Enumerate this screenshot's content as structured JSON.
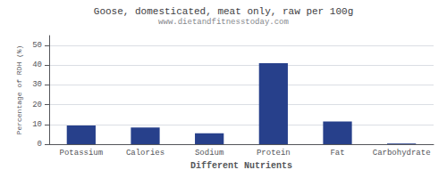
{
  "chart_data": {
    "type": "bar",
    "title": "Goose, domesticated, meat only, raw per 100g",
    "subtitle": "www.dietandfitnesstoday.com",
    "xlabel": "Different Nutrients",
    "ylabel": "Percentage of RDH (%)",
    "categories": [
      "Potassium",
      "Calories",
      "Sodium",
      "Protein",
      "Fat",
      "Carbohydrate"
    ],
    "values": [
      9.5,
      8.5,
      5.5,
      41.0,
      11.5,
      0.3
    ],
    "color": "#27408B",
    "ylim": [
      0,
      55
    ],
    "yticks": [
      0,
      10,
      20,
      30,
      40,
      50
    ],
    "grid": true
  }
}
